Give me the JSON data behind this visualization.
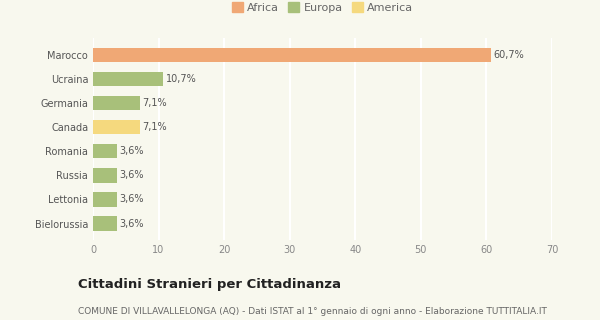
{
  "categories": [
    "Bielorussia",
    "Lettonia",
    "Russia",
    "Romania",
    "Canada",
    "Germania",
    "Ucraina",
    "Marocco"
  ],
  "values": [
    3.6,
    3.6,
    3.6,
    3.6,
    7.1,
    7.1,
    10.7,
    60.7
  ],
  "colors": [
    "#a8c07a",
    "#a8c07a",
    "#a8c07a",
    "#a8c07a",
    "#f5d97e",
    "#a8c07a",
    "#a8c07a",
    "#f0a875"
  ],
  "labels": [
    "3,6%",
    "3,6%",
    "3,6%",
    "3,6%",
    "7,1%",
    "7,1%",
    "10,7%",
    "60,7%"
  ],
  "legend_labels": [
    "Africa",
    "Europa",
    "America"
  ],
  "legend_colors": [
    "#f0a875",
    "#a8c07a",
    "#f5d97e"
  ],
  "xlim": [
    0,
    70
  ],
  "xticks": [
    0,
    10,
    20,
    30,
    40,
    50,
    60,
    70
  ],
  "title": "Cittadini Stranieri per Cittadinanza",
  "subtitle": "COMUNE DI VILLAVALLELONGA (AQ) - Dati ISTAT al 1° gennaio di ogni anno - Elaborazione TUTTITALIA.IT",
  "bg_color": "#f8f8ee",
  "grid_color": "#ffffff",
  "bar_height": 0.6,
  "title_fontsize": 9.5,
  "subtitle_fontsize": 6.5,
  "label_fontsize": 7,
  "tick_fontsize": 7,
  "legend_fontsize": 8
}
